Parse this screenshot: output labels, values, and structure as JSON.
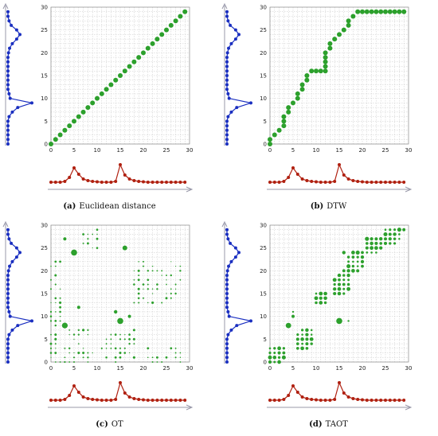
{
  "figure": {
    "panels": [
      {
        "letter": "(a)",
        "caption": "Euclidean distance",
        "method": "euclid"
      },
      {
        "letter": "(b)",
        "caption": "DTW",
        "method": "dtw"
      },
      {
        "letter": "(c)",
        "caption": "OT",
        "method": "ot"
      },
      {
        "letter": "(d)",
        "caption": "TAOT",
        "method": "taot"
      }
    ]
  },
  "chart_data": {
    "type": "scatter",
    "grid": true,
    "axis_range": [
      0,
      30
    ],
    "x_ticks": [
      0,
      5,
      10,
      15,
      20,
      25,
      30
    ],
    "y_ticks": [
      0,
      5,
      10,
      15,
      20,
      25,
      30
    ],
    "colors": {
      "series_x": "#b02010",
      "series_y": "#1a2fc0",
      "match": "#2ca02c",
      "axis_arrow": "#9999aa"
    },
    "series_x_values": [
      0,
      0,
      0,
      0.1,
      0.6,
      1.8,
      1,
      0.4,
      0.2,
      0.1,
      0.05,
      0,
      0,
      0,
      0.1,
      2.2,
      0.9,
      0.4,
      0.2,
      0.1,
      0.05,
      0,
      0,
      0,
      0,
      0,
      0,
      0,
      0,
      0
    ],
    "series_y_values": [
      0,
      0,
      0,
      0,
      0,
      0,
      0.1,
      0.4,
      0.9,
      2.2,
      0.2,
      0.1,
      0,
      0,
      0,
      0,
      0,
      0,
      0,
      0,
      0.05,
      0.15,
      0.4,
      0.8,
      1.1,
      0.8,
      0.3,
      0.1,
      0,
      0
    ],
    "dtw_path": [
      [
        0,
        0
      ],
      [
        0,
        1
      ],
      [
        1,
        2
      ],
      [
        2,
        3
      ],
      [
        3,
        4
      ],
      [
        3,
        5
      ],
      [
        3,
        6
      ],
      [
        4,
        7
      ],
      [
        4,
        8
      ],
      [
        5,
        9
      ],
      [
        6,
        10
      ],
      [
        6,
        11
      ],
      [
        7,
        12
      ],
      [
        7,
        13
      ],
      [
        8,
        14
      ],
      [
        8,
        15
      ],
      [
        9,
        16
      ],
      [
        10,
        16
      ],
      [
        11,
        16
      ],
      [
        12,
        16
      ],
      [
        12,
        17
      ],
      [
        12,
        18
      ],
      [
        12,
        19
      ],
      [
        12,
        20
      ],
      [
        13,
        21
      ],
      [
        13,
        22
      ],
      [
        14,
        23
      ],
      [
        15,
        24
      ],
      [
        16,
        25
      ],
      [
        17,
        26
      ],
      [
        17,
        27
      ],
      [
        18,
        28
      ],
      [
        19,
        29
      ],
      [
        20,
        29
      ],
      [
        21,
        29
      ],
      [
        22,
        29
      ],
      [
        23,
        29
      ],
      [
        24,
        29
      ],
      [
        25,
        29
      ],
      [
        26,
        29
      ],
      [
        27,
        29
      ],
      [
        28,
        29
      ],
      [
        29,
        29
      ]
    ],
    "ot_large_points": [
      [
        3,
        27,
        2
      ],
      [
        5,
        24,
        3.8
      ],
      [
        16,
        25,
        3
      ],
      [
        6,
        12,
        2
      ],
      [
        3,
        8,
        3.6
      ],
      [
        7,
        7,
        1.5
      ],
      [
        14,
        11,
        2.2
      ],
      [
        15,
        9,
        3.8
      ],
      [
        17,
        10,
        2
      ],
      [
        18,
        7,
        1.5
      ],
      [
        2,
        12,
        1.4
      ],
      [
        8,
        26,
        1.4
      ]
    ],
    "taot_large_points": [
      [
        16,
        24,
        2.2
      ],
      [
        4,
        8,
        3.4
      ],
      [
        5,
        10,
        2
      ],
      [
        5,
        11,
        1.2
      ],
      [
        15,
        9,
        3.8
      ],
      [
        17,
        9,
        1.2
      ],
      [
        29,
        29,
        2
      ],
      [
        28,
        29,
        1.6
      ]
    ]
  }
}
